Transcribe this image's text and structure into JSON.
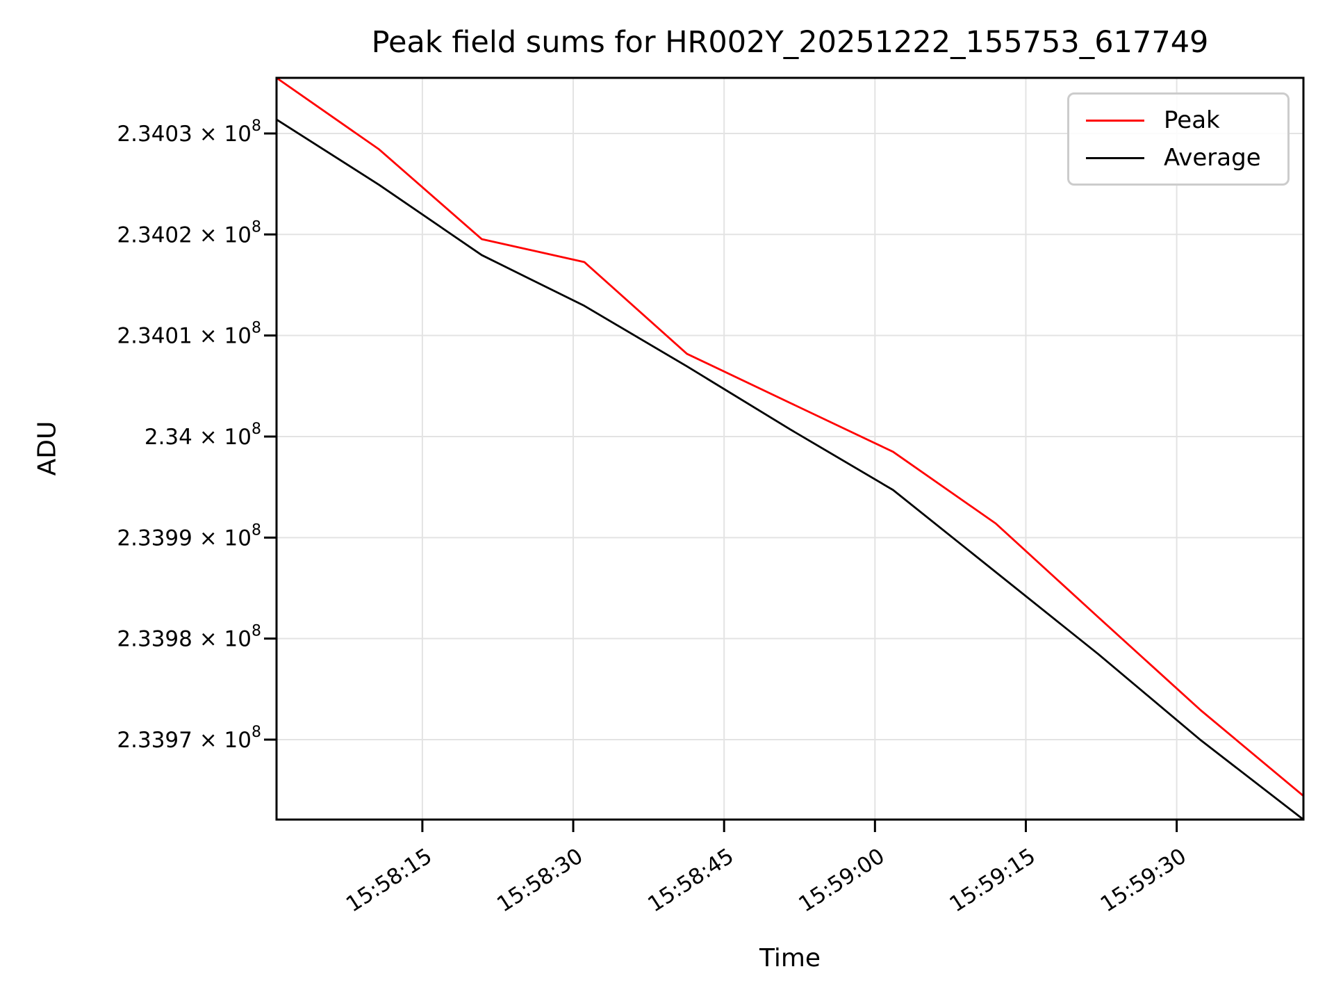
{
  "title": "Peak field sums for HR002Y_20251222_155753_617749",
  "axes": {
    "x_label": "Time",
    "y_label": "ADU"
  },
  "legend": {
    "position": "upper right",
    "entries": [
      {
        "label": "Peak",
        "color": "#ff0000"
      },
      {
        "label": "Average",
        "color": "#000000"
      }
    ]
  },
  "chart_data": {
    "type": "line",
    "title": "Peak field sums for HR002Y_20251222_155753_617749",
    "xlabel": "Time",
    "ylabel": "ADU",
    "grid": true,
    "legend_position": "upper right",
    "x_tick_rotation_deg": 33,
    "x": [
      "15:58:00.5",
      "15:58:10.7",
      "15:58:20.9",
      "15:58:31.1",
      "15:58:41.3",
      "15:58:51.6",
      "15:59:01.8",
      "15:59:12.0",
      "15:59:22.2",
      "15:59:32.4",
      "15:59:42.6"
    ],
    "series": [
      {
        "name": "Peak",
        "color": "#ff0000",
        "values": [
          234035500,
          234028420,
          234019540,
          234017270,
          234008190,
          234003310,
          233998490,
          233991400,
          233982120,
          233972900,
          233964430
        ]
      },
      {
        "name": "Average",
        "color": "#000000",
        "values": [
          234031380,
          234024910,
          234017960,
          234012940,
          234006950,
          234000690,
          233994710,
          233986590,
          233978470,
          233969940,
          233962090
        ]
      }
    ],
    "xlim": [
      "15:58:00.5",
      "15:59:42.6"
    ],
    "ylim": [
      233962090,
      234035500
    ],
    "x_ticks": [
      "15:58:15",
      "15:58:30",
      "15:58:45",
      "15:59:00",
      "15:59:15",
      "15:59:30"
    ],
    "y_ticks": [
      {
        "value": 234030000,
        "base": "2.3403 × 10",
        "exp": "8"
      },
      {
        "value": 234020000,
        "base": "2.3402 × 10",
        "exp": "8"
      },
      {
        "value": 234010000,
        "base": "2.3401 × 10",
        "exp": "8"
      },
      {
        "value": 234000000,
        "base": "2.34 × 10",
        "exp": "8"
      },
      {
        "value": 233990000,
        "base": "2.3399 × 10",
        "exp": "8"
      },
      {
        "value": 233980000,
        "base": "2.3398 × 10",
        "exp": "8"
      },
      {
        "value": 233970000,
        "base": "2.3397 × 10",
        "exp": "8"
      }
    ]
  },
  "colors": {
    "grid": "#e3e3e3",
    "spine": "#000000",
    "tick": "#000000",
    "background": "#ffffff",
    "legend_border": "#cccccc"
  }
}
